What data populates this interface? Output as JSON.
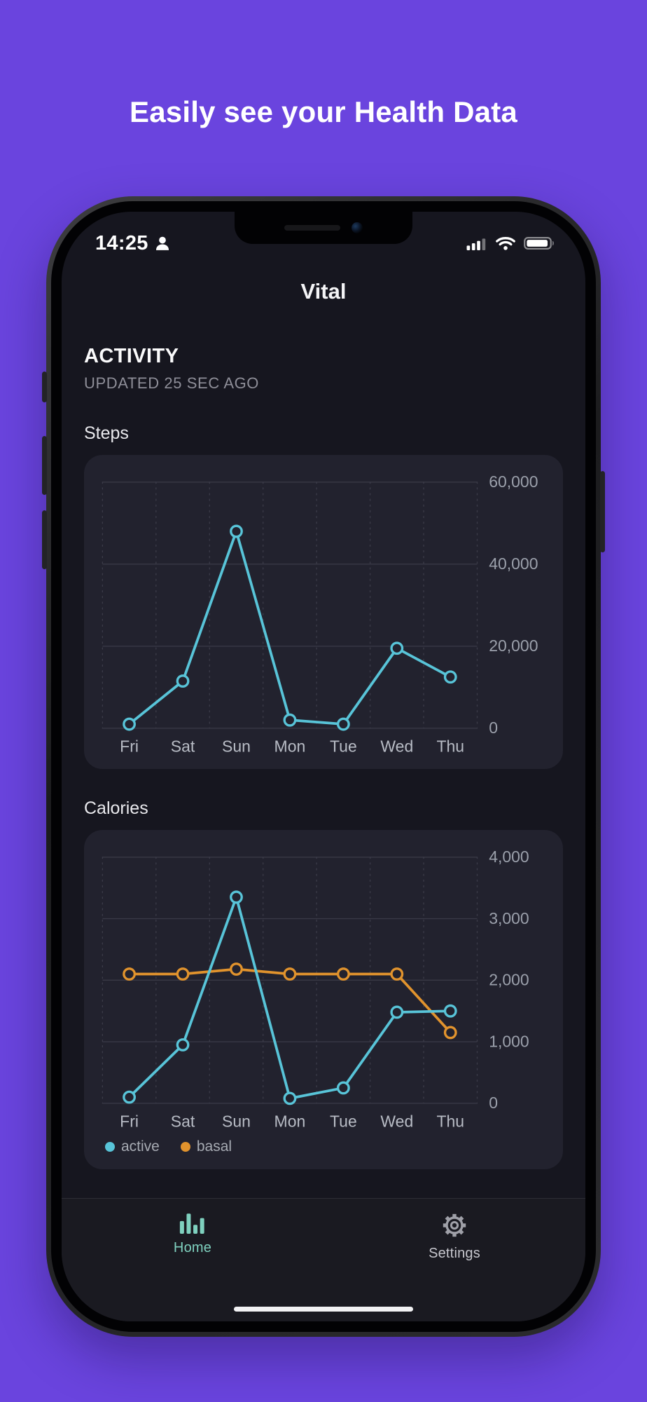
{
  "page": {
    "heading": "Easily see your Health Data"
  },
  "app": {
    "status_bar": {
      "time": "14:25"
    },
    "nav_title": "Vital",
    "activity": {
      "title": "ACTIVITY",
      "updated": "UPDATED 25 SEC AGO"
    },
    "tab_bar": {
      "home_label": "Home",
      "settings_label": "Settings"
    }
  },
  "colors": {
    "page_background": "#6a44de",
    "card_background": "#22222e",
    "accent_cyan": "#58c4d8",
    "accent_orange": "#e1932d",
    "tab_active": "#7fd1bf"
  },
  "chart_data": [
    {
      "type": "line",
      "title": "Steps",
      "categories": [
        "Fri",
        "Sat",
        "Sun",
        "Mon",
        "Tue",
        "Wed",
        "Thu"
      ],
      "series": [
        {
          "name": "steps",
          "color": "#58c4d8",
          "values": [
            1000,
            11500,
            48000,
            2000,
            1000,
            19500,
            12500
          ]
        }
      ],
      "ylim": [
        0,
        60000
      ],
      "yticks": [
        0,
        20000,
        40000,
        60000
      ],
      "grid": true,
      "legend": false
    },
    {
      "type": "line",
      "title": "Calories",
      "categories": [
        "Fri",
        "Sat",
        "Sun",
        "Mon",
        "Tue",
        "Wed",
        "Thu"
      ],
      "series": [
        {
          "name": "active",
          "color": "#58c4d8",
          "values": [
            100,
            950,
            3350,
            80,
            250,
            1480,
            1500
          ]
        },
        {
          "name": "basal",
          "color": "#e1932d",
          "values": [
            2100,
            2100,
            2180,
            2100,
            2100,
            2100,
            1150
          ]
        }
      ],
      "ylim": [
        0,
        4000
      ],
      "yticks": [
        0,
        1000,
        2000,
        3000,
        4000
      ],
      "grid": true,
      "legend": true,
      "legend_position": "bottom-left"
    }
  ]
}
